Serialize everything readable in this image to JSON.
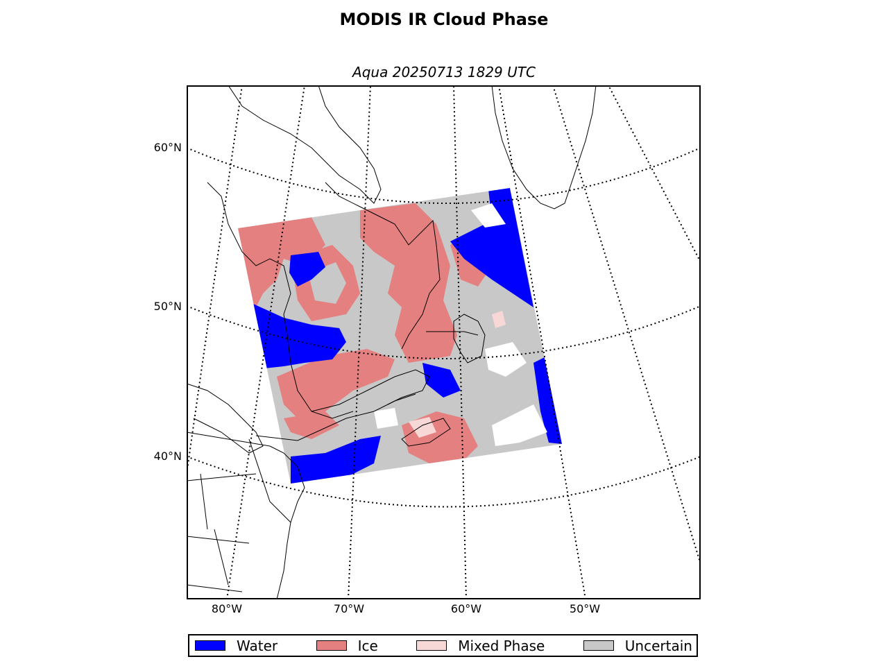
{
  "title": "MODIS IR Cloud Phase",
  "subtitle": "Aqua 20250713 1829 UTC",
  "lat_labels": [
    "60°N",
    "50°N",
    "40°N"
  ],
  "lon_labels": [
    "80°W",
    "70°W",
    "60°W",
    "50°W"
  ],
  "legend": [
    {
      "label": "Water",
      "color": "#0000ff"
    },
    {
      "label": "Ice",
      "color": "#e58080"
    },
    {
      "label": "Mixed Phase",
      "color": "#f8d8d6"
    },
    {
      "label": "Uncertain",
      "color": "#c8c8c8"
    }
  ],
  "colors": {
    "water": "#0000ff",
    "ice": "#e58080",
    "mixed": "#f8d8d6",
    "uncertain": "#c8c8c8",
    "clear": "#ffffff"
  }
}
